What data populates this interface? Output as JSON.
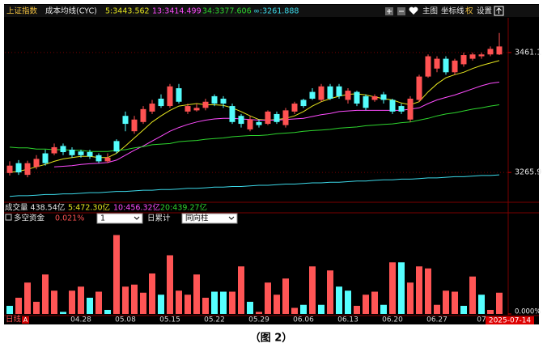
{
  "chart_data": [
    {
      "type": "candlestick",
      "title": "上证指数",
      "subtitle": "成本均线(CYC)",
      "up_color": "#ff5252",
      "down_color": "#54fcfc",
      "open": [
        3265,
        3281,
        3262,
        3275,
        3297,
        3297,
        3309,
        3303,
        3300,
        3299,
        3294,
        3284,
        3317,
        3358,
        3333,
        3348,
        3365,
        3386,
        3374,
        3403,
        3365,
        3367,
        3371,
        3390,
        3386,
        3374,
        3358,
        3336,
        3348,
        3345,
        3361,
        3343,
        3365,
        3384,
        3397,
        3384,
        3406,
        3406,
        3384,
        3397,
        3390,
        3384,
        3393,
        3384,
        3374,
        3352,
        3384,
        3422,
        3435,
        3451,
        3429,
        3442,
        3451,
        3455,
        3458,
        3458
      ],
      "high": [
        3284,
        3286,
        3285,
        3294,
        3303,
        3313,
        3313,
        3307,
        3303,
        3303,
        3297,
        3297,
        3320,
        3365,
        3358,
        3374,
        3384,
        3393,
        3410,
        3410,
        3378,
        3378,
        3386,
        3393,
        3390,
        3378,
        3361,
        3358,
        3352,
        3367,
        3365,
        3371,
        3381,
        3386,
        3403,
        3410,
        3410,
        3410,
        3403,
        3399,
        3393,
        3393,
        3397,
        3386,
        3378,
        3390,
        3425,
        3458,
        3455,
        3455,
        3451,
        3461,
        3461,
        3461,
        3471,
        3493
      ],
      "low": [
        3261,
        3262,
        3258,
        3271,
        3277,
        3294,
        3294,
        3290,
        3290,
        3288,
        3281,
        3281,
        3297,
        3333,
        3329,
        3345,
        3361,
        3371,
        3371,
        3378,
        3361,
        3365,
        3367,
        3374,
        3371,
        3345,
        3339,
        3333,
        3339,
        3343,
        3345,
        3339,
        3361,
        3371,
        3384,
        3381,
        3384,
        3386,
        3378,
        3374,
        3367,
        3381,
        3378,
        3361,
        3361,
        3348,
        3381,
        3420,
        3429,
        3425,
        3425,
        3438,
        3448,
        3451,
        3455,
        3457
      ],
      "close": [
        3277,
        3266,
        3281,
        3288,
        3281,
        3307,
        3299,
        3294,
        3294,
        3292,
        3284,
        3290,
        3300,
        3345,
        3352,
        3369,
        3378,
        3374,
        3406,
        3381,
        3374,
        3371,
        3381,
        3378,
        3378,
        3348,
        3345,
        3352,
        3343,
        3365,
        3348,
        3367,
        3378,
        3374,
        3386,
        3406,
        3386,
        3390,
        3399,
        3378,
        3371,
        3390,
        3384,
        3365,
        3365,
        3386,
        3422,
        3455,
        3451,
        3429,
        3448,
        3457,
        3458,
        3458,
        3467,
        3471
      ],
      "series": [
        {
          "name": "5:3443.562",
          "color": "#e6e61e",
          "values": [
            3266,
            3268,
            3271,
            3275,
            3279,
            3284,
            3288,
            3290,
            3292,
            3292,
            3290,
            3290,
            3297,
            3309,
            3322,
            3335,
            3348,
            3358,
            3367,
            3374,
            3376,
            3378,
            3376,
            3376,
            3375,
            3371,
            3365,
            3358,
            3352,
            3351,
            3352,
            3354,
            3358,
            3365,
            3374,
            3381,
            3386,
            3390,
            3393,
            3394,
            3392,
            3389,
            3386,
            3384,
            3379,
            3376,
            3381,
            3397,
            3410,
            3420,
            3425,
            3429,
            3435,
            3440,
            3444,
            3448
          ]
        },
        {
          "name": "13:3414.499",
          "color": "#ff4cff",
          "values": [
            null,
            null,
            null,
            null,
            null,
            3275,
            3276,
            3277,
            3279,
            3280,
            3281,
            3282,
            3286,
            3294,
            3302,
            3309,
            3317,
            3325,
            3333,
            3339,
            3344,
            3348,
            3351,
            3353,
            3354,
            3354,
            3353,
            3352,
            3351,
            3351,
            3351,
            3352,
            3353,
            3354,
            3357,
            3360,
            3362,
            3365,
            3366,
            3367,
            3367,
            3367,
            3367,
            3367,
            3367,
            3369,
            3371,
            3378,
            3384,
            3388,
            3392,
            3397,
            3402,
            3407,
            3411,
            3413
          ]
        },
        {
          "name": "34:3377.606",
          "color": "#2ed52e",
          "values": [
            3307,
            3306,
            3306,
            3304,
            3304,
            3303,
            3303,
            3302,
            3302,
            3300,
            3300,
            3300,
            3302,
            3303,
            3306,
            3308,
            3311,
            3312,
            3313,
            3316,
            3317,
            3318,
            3320,
            3321,
            3322,
            3324,
            3325,
            3326,
            3326,
            3327,
            3329,
            3330,
            3331,
            3333,
            3334,
            3335,
            3336,
            3338,
            3339,
            3340,
            3342,
            3343,
            3344,
            3345,
            3347,
            3348,
            3351,
            3354,
            3358,
            3361,
            3363,
            3366,
            3369,
            3371,
            3374,
            3376
          ]
        },
        {
          "name": "∞:3261.888",
          "color": "#3cd8e8",
          "values": [
            3227,
            3228,
            3228,
            3229,
            3230,
            3230,
            3231,
            3231,
            3232,
            3233,
            3233,
            3234,
            3235,
            3235,
            3236,
            3237,
            3237,
            3238,
            3238,
            3239,
            3240,
            3240,
            3241,
            3242,
            3242,
            3243,
            3243,
            3244,
            3245,
            3245,
            3246,
            3247,
            3247,
            3248,
            3249,
            3249,
            3250,
            3250,
            3251,
            3252,
            3252,
            3253,
            3254,
            3254,
            3255,
            3255,
            3256,
            3257,
            3257,
            3258,
            3259,
            3259,
            3260,
            3261,
            3261,
            3262
          ]
        }
      ],
      "ylim": [
        3220,
        3515
      ],
      "yticks": [
        3461.1,
        3265.9
      ],
      "grid": true
    },
    {
      "type": "bar",
      "title": "多空资金",
      "subtitle": "0.021%",
      "categories": [
        null,
        null,
        null,
        null,
        null,
        null,
        null,
        null,
        "04.28",
        null,
        null,
        null,
        null,
        "05.08",
        null,
        null,
        null,
        null,
        "05.15",
        null,
        null,
        null,
        null,
        "05.22",
        null,
        null,
        null,
        null,
        "05.29",
        null,
        null,
        null,
        null,
        "06.06",
        null,
        null,
        null,
        null,
        "06.13",
        null,
        null,
        null,
        null,
        "06.20",
        null,
        null,
        null,
        null,
        "06.27",
        null,
        null,
        null,
        null,
        "07",
        null,
        null
      ],
      "values": [
        0.008,
        0.016,
        0.031,
        0.012,
        0.039,
        0.023,
        0.002,
        0.023,
        0.027,
        0.016,
        0.022,
        0.004,
        0.078,
        0.027,
        0.029,
        0.021,
        0.04,
        0.019,
        0.058,
        0.023,
        0.019,
        0.039,
        0.016,
        0.022,
        0.022,
        0.022,
        0.047,
        0.012,
        0.002,
        0.031,
        0.019,
        0.035,
        0.006,
        0.009,
        0.047,
        0.009,
        0.043,
        0.027,
        0.023,
        0.008,
        0.019,
        0.022,
        0.009,
        0.051,
        0.051,
        0.031,
        0.047,
        0.045,
        0.009,
        0.023,
        0.022,
        0.008,
        0.037,
        0.019,
        0.004,
        0.021
      ],
      "colors": [
        "#55ffff",
        "#ff5555",
        "#ff5555",
        "#ff5555",
        "#ff5555",
        "#ff5555",
        "#55ffff",
        "#ff5555",
        "#ff5555",
        "#55ffff",
        "#ff5555",
        "#55ffff",
        "#ff5555",
        "#ff5555",
        "#ff5555",
        "#ff5555",
        "#ff5555",
        "#55ffff",
        "#ff5555",
        "#ff5555",
        "#ff5555",
        "#ff5555",
        "#ff5555",
        "#55ffff",
        "#55ffff",
        "#ff5555",
        "#ff5555",
        "#55ffff",
        "#ff5555",
        "#ff5555",
        "#ff5555",
        "#ff5555",
        "#ff5555",
        "#55ffff",
        "#ff5555",
        "#55ffff",
        "#ff5555",
        "#55ffff",
        "#55ffff",
        "#ff5555",
        "#ff5555",
        "#ff5555",
        "#55ffff",
        "#ff5555",
        "#55ffff",
        "#ff5555",
        "#ff5555",
        "#ff5555",
        "#ff5555",
        "#ff5555",
        "#ff5555",
        "#55ffff",
        "#ff5555",
        "#55ffff",
        "#ff5555",
        "#ff5555"
      ],
      "ylim": [
        0,
        0.088
      ],
      "yticks": [
        {
          "value": 0,
          "label": "0.000%"
        }
      ]
    }
  ],
  "ui": {
    "toolbar": [
      "主图",
      "坐标线",
      "权",
      "设置"
    ],
    "volume": {
      "label": "成交量 438.54亿",
      "averages": [
        "5:472.30亿",
        "10:456.32亿",
        "20:439.27亿"
      ]
    },
    "controls": {
      "period": "1",
      "mode": "日累计",
      "style": "同向柱"
    },
    "footer": {
      "period": "日线",
      "flag": "A",
      "date": "2025-07-14"
    },
    "caption": "（图 2）"
  }
}
